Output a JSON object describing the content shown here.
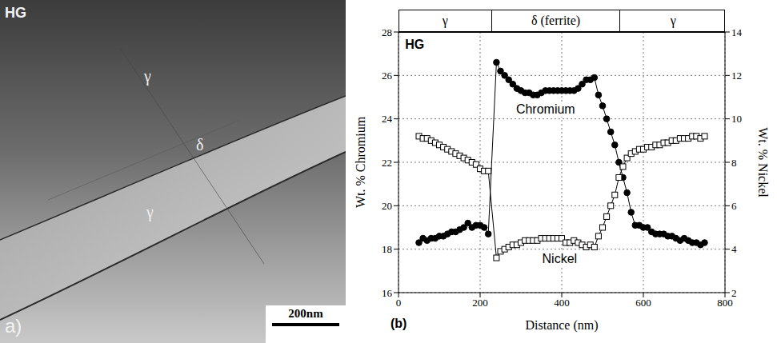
{
  "micrograph": {
    "labels": [
      "HG",
      "γ",
      "δ",
      "γ"
    ],
    "panel_label": "a)",
    "scale_bar": "200nm"
  },
  "chart_data": {
    "type": "line",
    "panel_label": "(b)",
    "x_label": "Distance (nm)",
    "y_label": "Wt. % Chromium",
    "y2_label": "Wt. % Nickel",
    "annotations": [
      "HG",
      "Chromium",
      "Nickel"
    ],
    "phases": [
      {
        "label": "γ",
        "start": 0,
        "end": 225
      },
      {
        "label": "δ (ferrite)",
        "start": 225,
        "end": 540
      },
      {
        "label": "γ",
        "start": 540,
        "end": 800
      }
    ],
    "xlim": [
      0,
      800
    ],
    "xticks": [
      0,
      200,
      400,
      600,
      800
    ],
    "ylim": [
      16,
      28
    ],
    "yticks": [
      16,
      18,
      20,
      22,
      24,
      26,
      28
    ],
    "y2lim": [
      2,
      14
    ],
    "y2ticks": [
      2,
      4,
      6,
      8,
      10,
      12,
      14
    ],
    "grid": true,
    "x": [
      50,
      60,
      70,
      80,
      90,
      100,
      110,
      120,
      130,
      140,
      150,
      160,
      170,
      180,
      190,
      200,
      210,
      220,
      240,
      250,
      260,
      270,
      280,
      290,
      300,
      310,
      320,
      330,
      340,
      350,
      360,
      370,
      380,
      390,
      400,
      410,
      420,
      430,
      440,
      450,
      460,
      470,
      480,
      490,
      500,
      510,
      520,
      530,
      540,
      550,
      560,
      570,
      580,
      590,
      600,
      610,
      620,
      630,
      640,
      650,
      660,
      670,
      680,
      690,
      700,
      710,
      720,
      730,
      740,
      750
    ],
    "series": [
      {
        "name": "Chromium",
        "color": "#000000",
        "marker": "circle",
        "line_style": "solid",
        "values": [
          18.3,
          18.5,
          18.4,
          18.5,
          18.5,
          18.6,
          18.6,
          18.7,
          18.8,
          18.8,
          18.9,
          19.0,
          19.2,
          19.0,
          19.1,
          19.1,
          19.0,
          18.7,
          26.6,
          26.2,
          26.0,
          25.8,
          25.6,
          25.4,
          25.3,
          25.2,
          25.2,
          25.1,
          25.1,
          25.2,
          25.3,
          25.3,
          25.3,
          25.3,
          25.3,
          25.3,
          25.3,
          25.3,
          25.4,
          25.6,
          25.8,
          25.8,
          25.9,
          25.1,
          24.6,
          24.0,
          23.4,
          22.8,
          22.0,
          21.3,
          20.6,
          19.7,
          19.1,
          19.1,
          19.0,
          19.0,
          18.8,
          18.7,
          18.7,
          18.7,
          18.6,
          18.6,
          18.5,
          18.4,
          18.5,
          18.4,
          18.3,
          18.3,
          18.2,
          18.3
        ]
      },
      {
        "name": "Nickel",
        "color": "#000000",
        "marker": "square",
        "line_style": "solid",
        "axis": "y2",
        "values": [
          9.2,
          9.1,
          9.1,
          9.0,
          8.9,
          8.8,
          8.7,
          8.6,
          8.5,
          8.4,
          8.3,
          8.2,
          8.1,
          8.0,
          7.9,
          7.7,
          7.6,
          7.6,
          3.6,
          3.9,
          4.0,
          4.1,
          4.2,
          4.2,
          4.3,
          4.4,
          4.4,
          4.4,
          4.4,
          4.5,
          4.5,
          4.5,
          4.5,
          4.5,
          4.5,
          4.3,
          4.3,
          4.4,
          4.3,
          4.2,
          4.1,
          4.2,
          4.1,
          4.6,
          5.0,
          5.5,
          6.0,
          6.5,
          7.3,
          7.8,
          8.2,
          8.4,
          8.5,
          8.6,
          8.6,
          8.7,
          8.7,
          8.8,
          8.8,
          8.9,
          8.9,
          9.0,
          9.0,
          9.1,
          9.1,
          9.1,
          9.2,
          9.2,
          9.1,
          9.2
        ]
      }
    ]
  }
}
